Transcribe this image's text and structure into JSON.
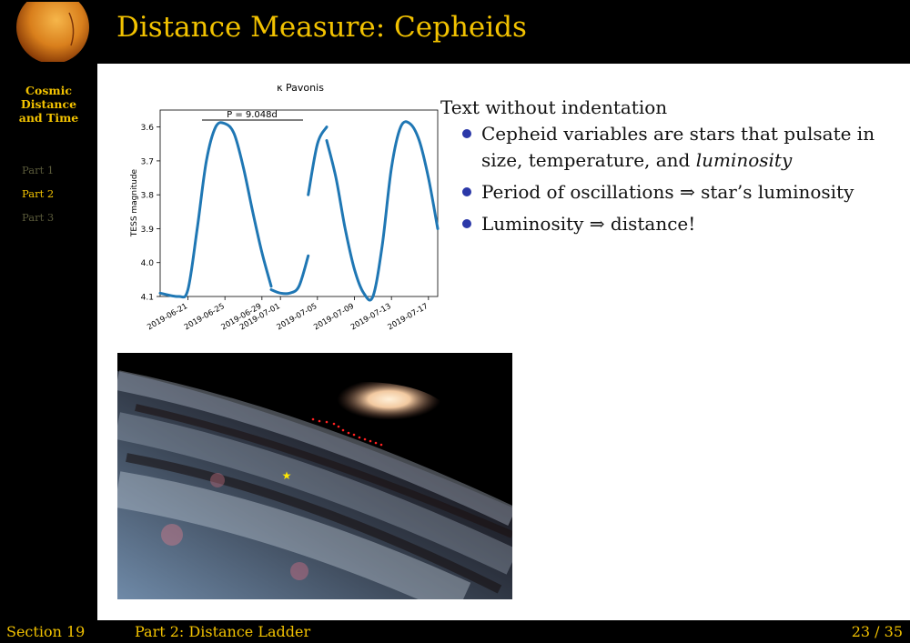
{
  "header": {
    "title": "Distance Measure: Cepheids"
  },
  "sidebar": {
    "title_lines": [
      "Cosmic",
      "Distance",
      "and Time"
    ],
    "items": [
      {
        "label": "Part 1",
        "active": false
      },
      {
        "label": "Part 2",
        "active": true
      },
      {
        "label": "Part 3",
        "active": false
      }
    ]
  },
  "slide": {
    "intro": "Text without indentation",
    "bullets": [
      {
        "text": "Cepheid variables are stars that pulsate in size, temperature, and ",
        "em": "luminosity"
      },
      {
        "text": "Period of oscillations ⇒ star’s luminosity",
        "em": ""
      },
      {
        "text": "Luminosity ⇒ distance!",
        "em": ""
      }
    ]
  },
  "chart_data": {
    "type": "line",
    "title": "κ Pavonis",
    "xlabel": "",
    "ylabel": "TESS magnitude",
    "period_label": "P = 9.048d",
    "y_inverted": true,
    "ylim": [
      4.1,
      3.55
    ],
    "yticks": [
      3.6,
      3.7,
      3.8,
      3.9,
      4.0,
      4.1
    ],
    "ytick_labels": [
      "3.6",
      "3.7",
      "3.8",
      "3.9",
      "4.0",
      "4.1"
    ],
    "xlim": [
      "2019-06-18",
      "2019-07-18"
    ],
    "xticks": [
      "2019-06-21",
      "2019-06-25",
      "2019-06-29",
      "2019-07-01",
      "2019-07-05",
      "2019-07-09",
      "2019-07-13",
      "2019-07-17"
    ],
    "series": [
      {
        "color": "#1f77b4",
        "x": [
          "2019-06-18",
          "2019-06-20",
          "2019-06-21",
          "2019-06-22",
          "2019-06-23",
          "2019-06-24",
          "2019-06-25",
          "2019-06-26",
          "2019-06-27",
          "2019-06-28",
          "2019-06-29",
          "2019-06-30"
        ],
        "y": [
          4.09,
          4.1,
          4.08,
          3.9,
          3.7,
          3.6,
          3.59,
          3.62,
          3.72,
          3.85,
          3.97,
          4.07
        ]
      },
      {
        "color": "#1f77b4",
        "x": [
          "2019-06-30",
          "2019-07-01",
          "2019-07-02",
          "2019-07-03",
          "2019-07-04"
        ],
        "y": [
          4.08,
          4.09,
          4.09,
          4.07,
          3.98
        ]
      },
      {
        "color": "#1f77b4",
        "x": [
          "2019-07-04",
          "2019-07-05",
          "2019-07-06"
        ],
        "y": [
          3.8,
          3.65,
          3.6
        ]
      },
      {
        "color": "#1f77b4",
        "x": [
          "2019-07-06",
          "2019-07-07",
          "2019-07-08",
          "2019-07-09",
          "2019-07-10",
          "2019-07-11",
          "2019-07-12",
          "2019-07-13",
          "2019-07-14",
          "2019-07-15",
          "2019-07-16",
          "2019-07-17",
          "2019-07-18"
        ],
        "y": [
          3.64,
          3.75,
          3.9,
          4.02,
          4.09,
          4.1,
          3.95,
          3.72,
          3.6,
          3.59,
          3.64,
          3.75,
          3.9
        ]
      }
    ]
  },
  "photo": {
    "description": ""
  },
  "footer": {
    "section": "Section 19",
    "part": "Part 2:  Distance Ladder",
    "page": "23 / 35"
  },
  "colors": {
    "accent": "#f2c200",
    "bullet": "#2b38a8",
    "line": "#1f77b4"
  }
}
